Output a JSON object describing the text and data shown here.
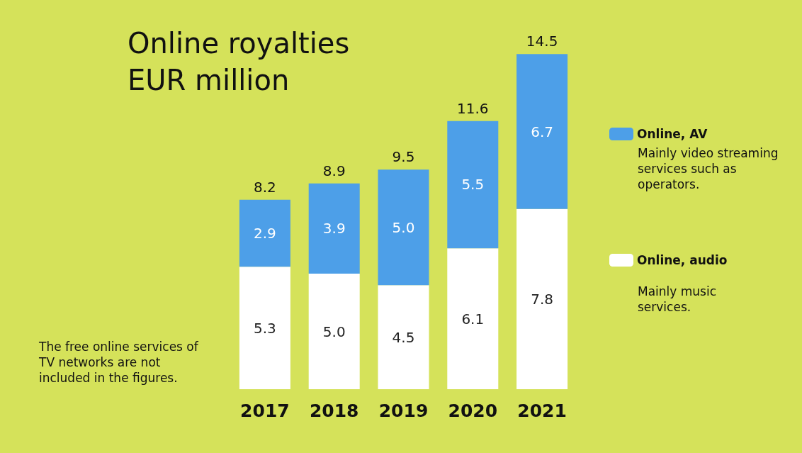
{
  "chart_data": {
    "type": "bar",
    "title": "Online royalties\nEUR million",
    "categories": [
      "2017",
      "2018",
      "2019",
      "2020",
      "2021"
    ],
    "stacked": true,
    "legend": "right",
    "series": [
      {
        "name": "Online, audio",
        "color": "#ffffff",
        "values": [
          5.3,
          5.0,
          4.5,
          6.1,
          7.8
        ],
        "value_labels": [
          "5.3",
          "5.0",
          "4.5",
          "6.1",
          "7.8"
        ]
      },
      {
        "name": "Online, AV",
        "color": "#4d9fe8",
        "values": [
          2.9,
          3.9,
          5.0,
          5.5,
          6.7
        ],
        "value_labels": [
          "2.9",
          "3.9",
          "5.0",
          "5.5",
          "6.7"
        ]
      }
    ],
    "totals": [
      "8.2",
      "8.9",
      "9.5",
      "11.6",
      "14.5"
    ],
    "annotations": [
      "Mainly video streaming services such as operators.",
      "Mainly music services.",
      "The free online services of TV networks are not included in the figures."
    ],
    "grid": false
  }
}
